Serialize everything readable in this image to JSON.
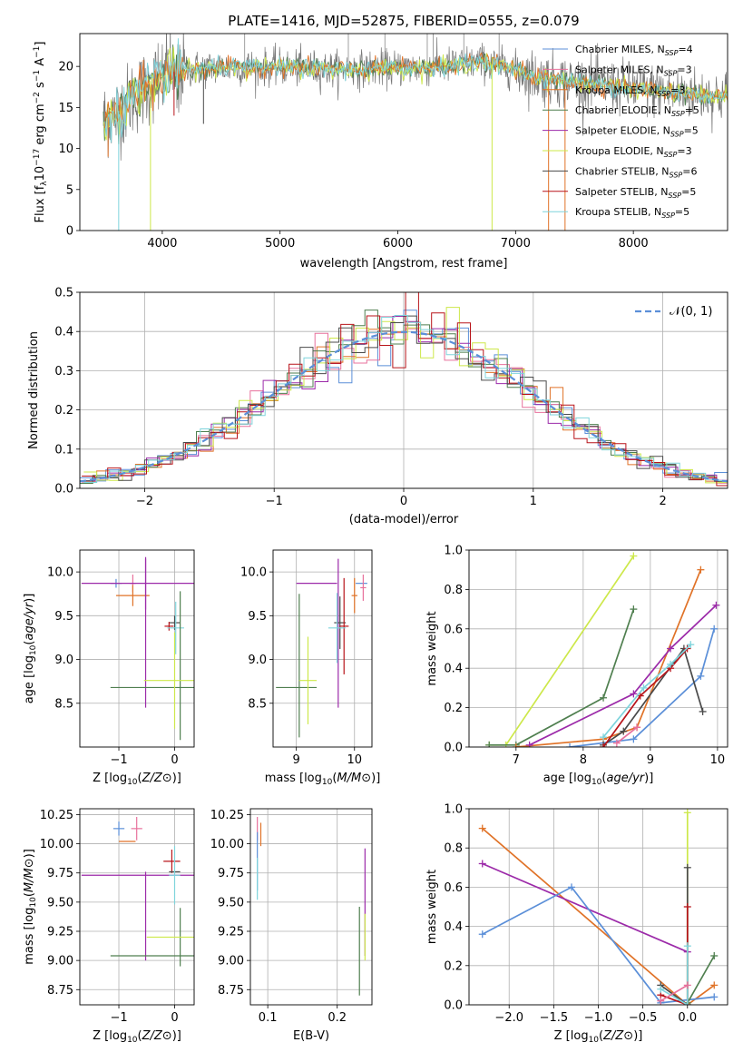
{
  "colors": {
    "chabrier_miles": "#5b8fd8",
    "salpeter_miles": "#e8719c",
    "kroupa_miles": "#e07227",
    "chabrier_elodie": "#4f7f4f",
    "salpeter_elodie": "#9c2aa9",
    "kroupa_elodie": "#cde84a",
    "chabrier_stelib": "#4a4a4a",
    "salpeter_stelib": "#b8141a",
    "kroupa_stelib": "#7fd4dc",
    "data": "#777777",
    "normal": "#5b8fd8",
    "grid": "#b0b0b0"
  },
  "legend": {
    "spec": [
      {
        "pre": "Chabrier MILES, N",
        "n": "4",
        "key": "chabrier_miles"
      },
      {
        "pre": "Salpeter MILES, N",
        "n": "3",
        "key": "salpeter_miles"
      },
      {
        "pre": "Kroupa MILES, N",
        "n": "3",
        "key": "kroupa_miles"
      },
      {
        "pre": "Chabrier ELODIE, N",
        "n": "5",
        "key": "chabrier_elodie"
      },
      {
        "pre": "Salpeter ELODIE, N",
        "n": "5",
        "key": "salpeter_elodie"
      },
      {
        "pre": "Kroupa ELODIE, N",
        "n": "3",
        "key": "kroupa_elodie"
      },
      {
        "pre": "Chabrier STELIB, N",
        "n": "6",
        "key": "chabrier_stelib"
      },
      {
        "pre": "Salpeter STELIB, N",
        "n": "5",
        "key": "salpeter_stelib"
      },
      {
        "pre": "Kroupa STELIB, N",
        "n": "5",
        "key": "kroupa_stelib"
      }
    ],
    "ssp_sub": "SSP",
    "normal": "𝒩(0, 1)"
  },
  "chart_data": [
    {
      "id": "spectrum",
      "type": "line",
      "title": "PLATE=1416, MJD=52875, FIBERID=0555, z=0.079",
      "xlabel": "wavelength [Angstrom, rest frame]",
      "ylabel_parts": [
        "Flux [f",
        "λ",
        "10",
        "−17",
        " erg cm",
        "−2",
        " s",
        "−1",
        " A",
        "−1",
        "]"
      ],
      "xlim": [
        3300,
        8800
      ],
      "ylim": [
        0,
        24
      ],
      "xticks": [
        4000,
        5000,
        6000,
        7000,
        8000
      ],
      "yticks": [
        0,
        5,
        10,
        15,
        20
      ],
      "grid": false,
      "legend_position": "right",
      "continuum": {
        "x": [
          3500,
          3600,
          3800,
          3950,
          4050,
          4200,
          4500,
          5000,
          5500,
          6000,
          6300,
          6500,
          6700,
          7000,
          7200,
          7500,
          8000,
          8500,
          8800
        ],
        "y": [
          13.5,
          14.2,
          16.8,
          18.2,
          19.2,
          19.6,
          19.9,
          19.9,
          19.6,
          19.8,
          19.9,
          20.2,
          20.6,
          19.6,
          18.6,
          18.1,
          17.3,
          16.6,
          16.3
        ]
      },
      "dips": [
        {
          "x": 3630,
          "to": 0
        },
        {
          "x": 3900,
          "to": 0
        },
        {
          "x": 3540,
          "to": 9
        },
        {
          "x": 4350,
          "to": 13
        },
        {
          "x": 4100,
          "to": 14
        },
        {
          "x": 6800,
          "to": 0
        },
        {
          "x": 7280,
          "to": 0
        },
        {
          "x": 7420,
          "to": 0
        }
      ]
    },
    {
      "id": "residuals",
      "type": "histogram",
      "xlabel": "(data-model)/error",
      "ylabel": "Normed distribution",
      "xlim": [
        -2.5,
        2.5
      ],
      "ylim": [
        0,
        0.5
      ],
      "xticks": [
        -2,
        -1,
        0,
        1,
        2
      ],
      "yticks": [
        0.0,
        0.1,
        0.2,
        0.3,
        0.4,
        0.5
      ],
      "grid": true,
      "bin_width": 0.1,
      "legend_position": "top-right"
    },
    {
      "id": "age_vs_z",
      "type": "errorbar",
      "xlabel": "Z [log10(Z/Z⊙)]",
      "ylabel": "age  [log10(age/yr)]",
      "xlim": [
        -1.7,
        0.35
      ],
      "ylim": [
        8.0,
        10.25
      ],
      "xticks": [
        -1,
        0
      ],
      "yticks": [
        8.5,
        9.0,
        9.5,
        10.0
      ],
      "grid": true,
      "points": [
        {
          "key": "chabrier_miles",
          "x": -1.05,
          "y": 9.87,
          "xe": 0.1,
          "ye": 0.05
        },
        {
          "key": "salpeter_miles",
          "x": -0.75,
          "y": 9.87,
          "xe": 0.05,
          "ye": 0.1
        },
        {
          "key": "kroupa_miles",
          "x": -0.75,
          "y": 9.73,
          "xe": 0.3,
          "ye": 0.12
        },
        {
          "key": "salpeter_elodie",
          "x": -0.52,
          "y": 9.87,
          "xe": 1.15,
          "ye": 0.3
        },
        {
          "key": "salpeter_elodie",
          "x": -0.52,
          "y": 9.3,
          "xe": 0.0,
          "ye": 0.85
        },
        {
          "key": "chabrier_stelib",
          "x": 0.0,
          "y": 9.42,
          "xe": 0.1,
          "ye": 0.08
        },
        {
          "key": "salpeter_stelib",
          "x": -0.1,
          "y": 9.38,
          "xe": 0.08,
          "ye": 0.05
        },
        {
          "key": "kroupa_stelib",
          "x": 0.02,
          "y": 9.36,
          "xe": 0.15,
          "ye": 0.3
        },
        {
          "key": "chabrier_elodie",
          "x": 0.1,
          "y": 8.93,
          "xe": 0.0,
          "ye": 0.85
        },
        {
          "key": "chabrier_elodie",
          "x": -0.4,
          "y": 8.68,
          "xe": 0.75,
          "ye": 0.0
        },
        {
          "key": "kroupa_elodie",
          "x": 0.0,
          "y": 8.76,
          "xe": 0.55,
          "ye": 0.55
        }
      ]
    },
    {
      "id": "age_vs_mass",
      "type": "errorbar",
      "xlabel": "mass [log10(M/M⊙)]",
      "ylabel": "",
      "xlim": [
        8.6,
        10.3
      ],
      "ylim": [
        8.0,
        10.25
      ],
      "xticks": [
        9,
        10
      ],
      "yticks": [
        8.5,
        9.0,
        9.5,
        10.0
      ],
      "grid": true,
      "points": [
        {
          "key": "chabrier_miles",
          "x": 10.12,
          "y": 9.87,
          "xe": 0.1,
          "ye": 0.0
        },
        {
          "key": "salpeter_miles",
          "x": 10.15,
          "y": 9.82,
          "xe": 0.05,
          "ye": 0.15
        },
        {
          "key": "kroupa_miles",
          "x": 10.0,
          "y": 9.73,
          "xe": 0.05,
          "ye": 0.2
        },
        {
          "key": "salpeter_elodie",
          "x": 9.72,
          "y": 9.3,
          "xe": 0.0,
          "ye": 0.85
        },
        {
          "key": "salpeter_elodie",
          "x": 9.35,
          "y": 9.87,
          "xe": 0.35,
          "ye": 0.0
        },
        {
          "key": "chabrier_stelib",
          "x": 9.75,
          "y": 9.42,
          "xe": 0.1,
          "ye": 0.3
        },
        {
          "key": "salpeter_stelib",
          "x": 9.82,
          "y": 9.38,
          "xe": 0.08,
          "ye": 0.55
        },
        {
          "key": "kroupa_stelib",
          "x": 9.7,
          "y": 9.36,
          "xe": 0.15,
          "ye": 0.4
        },
        {
          "key": "chabrier_elodie",
          "x": 9.05,
          "y": 8.93,
          "xe": 0.0,
          "ye": 0.82
        },
        {
          "key": "chabrier_elodie",
          "x": 9.0,
          "y": 8.68,
          "xe": 0.35,
          "ye": 0.0
        },
        {
          "key": "kroupa_elodie",
          "x": 9.2,
          "y": 8.76,
          "xe": 0.15,
          "ye": 0.5
        }
      ]
    },
    {
      "id": "weight_vs_age",
      "type": "line",
      "xlabel": "age  [log10(age/yr)]",
      "ylabel": "mass weight",
      "xlim": [
        6.3,
        10.15
      ],
      "ylim": [
        0,
        1.0
      ],
      "xticks": [
        7,
        8,
        9,
        10
      ],
      "yticks": [
        0.0,
        0.2,
        0.4,
        0.6,
        0.8,
        1.0
      ],
      "grid": true,
      "series": [
        {
          "key": "kroupa_elodie",
          "x": [
            6.6,
            6.85,
            8.75
          ],
          "y": [
            0.01,
            0.01,
            0.97
          ]
        },
        {
          "key": "chabrier_elodie",
          "x": [
            6.6,
            7.0,
            8.3,
            8.75
          ],
          "y": [
            0.01,
            0.01,
            0.25,
            0.7
          ]
        },
        {
          "key": "kroupa_miles",
          "x": [
            7.0,
            8.3,
            8.8,
            9.75
          ],
          "y": [
            0.0,
            0.04,
            0.1,
            0.9
          ]
        },
        {
          "key": "salpeter_elodie",
          "x": [
            7.2,
            8.75,
            9.3,
            9.98
          ],
          "y": [
            0.01,
            0.27,
            0.5,
            0.72
          ]
        },
        {
          "key": "chabrier_miles",
          "x": [
            7.8,
            8.75,
            9.75,
            9.95
          ],
          "y": [
            0.0,
            0.04,
            0.36,
            0.6
          ]
        },
        {
          "key": "chabrier_stelib",
          "x": [
            8.3,
            8.6,
            9.5,
            9.78
          ],
          "y": [
            0.01,
            0.08,
            0.5,
            0.18
          ]
        },
        {
          "key": "salpeter_stelib",
          "x": [
            8.3,
            8.85,
            9.3,
            9.55
          ],
          "y": [
            0.0,
            0.26,
            0.4,
            0.5
          ]
        },
        {
          "key": "kroupa_stelib",
          "x": [
            8.3,
            8.9,
            9.3,
            9.6
          ],
          "y": [
            0.05,
            0.3,
            0.42,
            0.52
          ]
        },
        {
          "key": "salpeter_miles",
          "x": [
            8.5,
            8.8
          ],
          "y": [
            0.02,
            0.1
          ]
        }
      ]
    },
    {
      "id": "mass_vs_z",
      "type": "errorbar",
      "xlabel": "Z [log10(Z/Z⊙)]",
      "ylabel": "mass [log10(M/M⊙)]",
      "xlim": [
        -1.7,
        0.35
      ],
      "ylim": [
        8.62,
        10.3
      ],
      "xticks": [
        -1,
        0
      ],
      "yticks": [
        8.75,
        9.0,
        9.25,
        9.5,
        9.75,
        10.0,
        10.25
      ],
      "grid": true,
      "points": [
        {
          "key": "chabrier_miles",
          "x": -1.0,
          "y": 10.13,
          "xe": 0.1,
          "ye": 0.06
        },
        {
          "key": "salpeter_miles",
          "x": -0.68,
          "y": 10.13,
          "xe": 0.1,
          "ye": 0.1
        },
        {
          "key": "kroupa_miles",
          "x": -0.85,
          "y": 10.02,
          "xe": 0.15,
          "ye": 0.0
        },
        {
          "key": "salpeter_elodie",
          "x": -0.52,
          "y": 9.73,
          "xe": 1.15,
          "ye": 0.0
        },
        {
          "key": "salpeter_elodie",
          "x": -0.52,
          "y": 9.38,
          "xe": 0.0,
          "ye": 0.38
        },
        {
          "key": "salpeter_stelib",
          "x": -0.05,
          "y": 9.85,
          "xe": 0.15,
          "ye": 0.1
        },
        {
          "key": "chabrier_stelib",
          "x": 0.0,
          "y": 9.76,
          "xe": 0.1,
          "ye": 0.0
        },
        {
          "key": "kroupa_stelib",
          "x": 0.0,
          "y": 9.73,
          "xe": 0.1,
          "ye": 0.25
        },
        {
          "key": "chabrier_elodie",
          "x": 0.1,
          "y": 9.2,
          "xe": 0.0,
          "ye": 0.25
        },
        {
          "key": "chabrier_elodie",
          "x": -0.4,
          "y": 9.04,
          "xe": 0.75,
          "ye": 0.0
        },
        {
          "key": "kroupa_elodie",
          "x": 0.0,
          "y": 9.2,
          "xe": 0.5,
          "ye": 0.0
        }
      ]
    },
    {
      "id": "mass_vs_ebv",
      "type": "errorbar",
      "xlabel": "E(B-V)",
      "ylabel": "",
      "xlim": [
        0.075,
        0.25
      ],
      "ylim": [
        8.62,
        10.3
      ],
      "xticks": [
        0.1,
        0.2
      ],
      "yticks": [
        8.75,
        9.0,
        9.25,
        9.5,
        9.75,
        10.0,
        10.25
      ],
      "grid": true,
      "points": [
        {
          "key": "salpeter_miles",
          "x": 0.085,
          "y": 10.13,
          "xe": 0.0,
          "ye": 0.1
        },
        {
          "key": "kroupa_miles",
          "x": 0.09,
          "y": 10.08,
          "xe": 0.0,
          "ye": 0.1
        },
        {
          "key": "chabrier_miles",
          "x": 0.085,
          "y": 9.85,
          "xe": 0.0,
          "ye": 0.25
        },
        {
          "key": "kroupa_stelib",
          "x": 0.085,
          "y": 9.7,
          "xe": 0.0,
          "ye": 0.18
        },
        {
          "key": "salpeter_elodie",
          "x": 0.24,
          "y": 9.5,
          "xe": 0.0,
          "ye": 0.46
        },
        {
          "key": "kroupa_elodie",
          "x": 0.24,
          "y": 9.2,
          "xe": 0.0,
          "ye": 0.2
        },
        {
          "key": "chabrier_elodie",
          "x": 0.232,
          "y": 9.08,
          "xe": 0.0,
          "ye": 0.38
        }
      ]
    },
    {
      "id": "weight_vs_z",
      "type": "line",
      "xlabel": "Z [log10(Z/Z⊙)]",
      "ylabel": "mass weight",
      "xlim": [
        -2.45,
        0.45
      ],
      "ylim": [
        0,
        1.0
      ],
      "xticks": [
        -2.0,
        -1.5,
        -1.0,
        -0.5,
        0.0
      ],
      "yticks": [
        0.0,
        0.2,
        0.4,
        0.6,
        0.8,
        1.0
      ],
      "grid": true,
      "series": [
        {
          "key": "kroupa_miles",
          "x": [
            -2.3,
            0.0,
            0.3
          ],
          "y": [
            0.9,
            0.0,
            0.1
          ]
        },
        {
          "key": "salpeter_elodie",
          "x": [
            -2.3,
            0.0
          ],
          "y": [
            0.72,
            0.27
          ]
        },
        {
          "key": "chabrier_miles",
          "x": [
            -2.3,
            -1.3,
            -0.3,
            0.3
          ],
          "y": [
            0.36,
            0.6,
            0.01,
            0.04
          ]
        },
        {
          "key": "chabrier_elodie",
          "x": [
            0.0,
            0.3
          ],
          "y": [
            0.01,
            0.25
          ]
        },
        {
          "key": "kroupa_elodie",
          "x": [
            0.0,
            0.0
          ],
          "y": [
            0.0,
            0.98
          ]
        },
        {
          "key": "chabrier_stelib",
          "x": [
            -0.3,
            0.0,
            0.0
          ],
          "y": [
            0.1,
            0.0,
            0.7
          ]
        },
        {
          "key": "salpeter_stelib",
          "x": [
            -0.3,
            0.0,
            0.0
          ],
          "y": [
            0.05,
            0.0,
            0.5
          ]
        },
        {
          "key": "kroupa_stelib",
          "x": [
            -0.3,
            0.0,
            0.0
          ],
          "y": [
            0.08,
            0.0,
            0.3
          ]
        },
        {
          "key": "salpeter_miles",
          "x": [
            -0.3,
            0.0
          ],
          "y": [
            0.02,
            0.1
          ]
        }
      ]
    }
  ]
}
